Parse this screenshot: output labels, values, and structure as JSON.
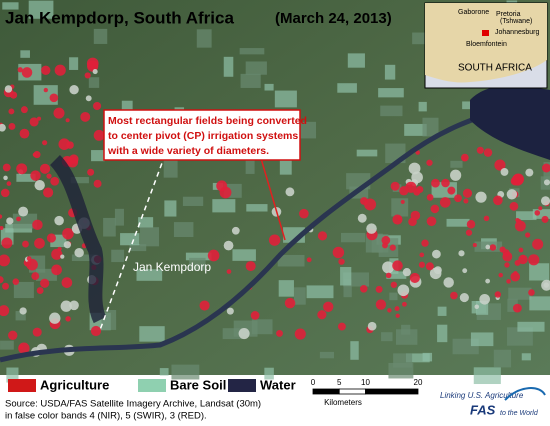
{
  "header": {
    "title": "Jan Kempdorp, South Africa",
    "date": "(March 24, 2013)"
  },
  "annotation": {
    "lines": [
      "Most rectangular fields being converted",
      "to center pivot (CP) irrigation systems",
      "with a wide variety of diameters."
    ]
  },
  "place_label": "Jan Kempdorp",
  "inset": {
    "cities": [
      "Gaborone",
      "Pretoria",
      "(Tshwane)",
      "Johannesburg",
      "Bloemfontein"
    ],
    "country": "SOUTH AFRICA"
  },
  "legend": [
    "Agriculture",
    "Bare Soil",
    "Water"
  ],
  "scale_bar": {
    "ticks": [
      0,
      5,
      10,
      20
    ],
    "unit": "Kilometers"
  },
  "source": [
    "Source: USDA/FAS Satellite Imagery Archive, Landsat (30m)",
    "in false color bands 4 (NIR), 5 (SWIR), 3 (RED)."
  ],
  "logo": {
    "top": "Linking U.S. Agriculture",
    "mark": "FAS",
    "bottom": "to the World"
  }
}
